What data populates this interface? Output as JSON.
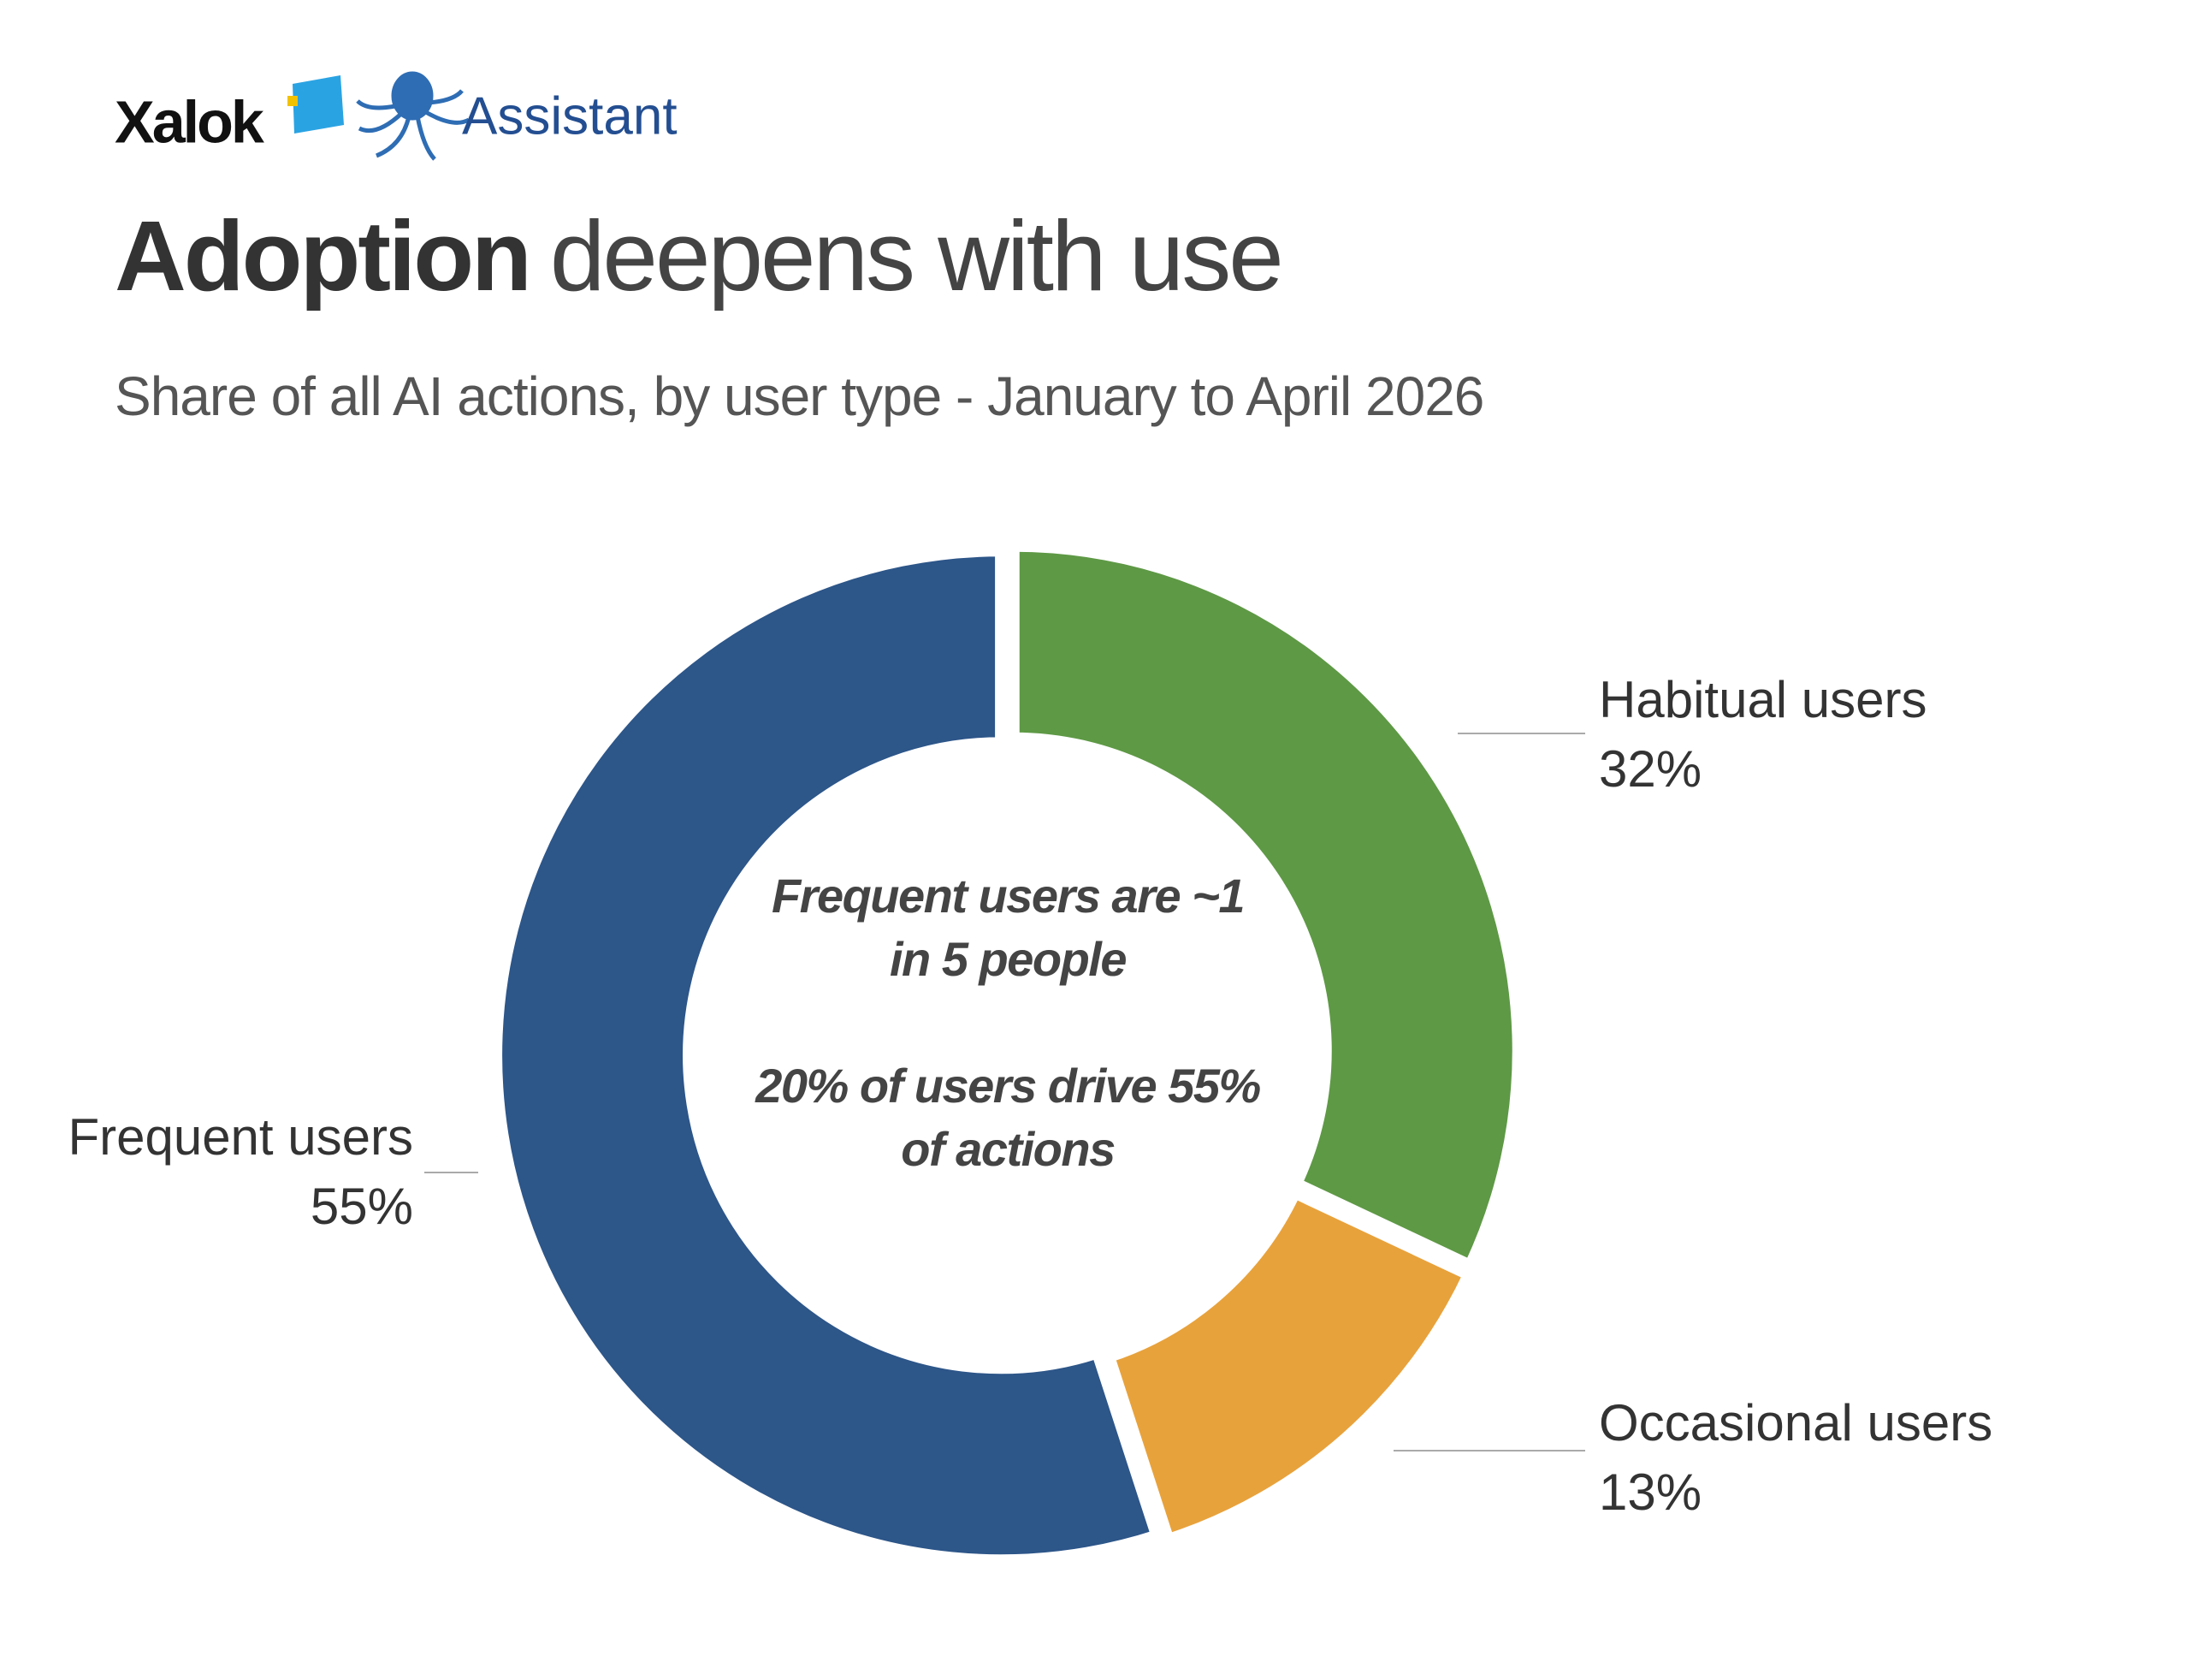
{
  "brand": {
    "logo": "Xalok",
    "product": "Assistant"
  },
  "chart_data": {
    "type": "donut",
    "title_emphasis": "Adoption",
    "title": "deepens with use",
    "subtitle": "Share of all AI actions, by user type - January to April 2026",
    "categories": [
      "Frequent users",
      "Habitual users",
      "Occasional users"
    ],
    "values": [
      55,
      32,
      13
    ],
    "value_labels": [
      "55%",
      "32%",
      "13%"
    ],
    "colors": [
      "#2d5689",
      "#5e9945",
      "#e8a23b"
    ],
    "annotations": [
      "Frequent users are ~1 in 5 people",
      "20% of users drive 55% of actions"
    ]
  }
}
